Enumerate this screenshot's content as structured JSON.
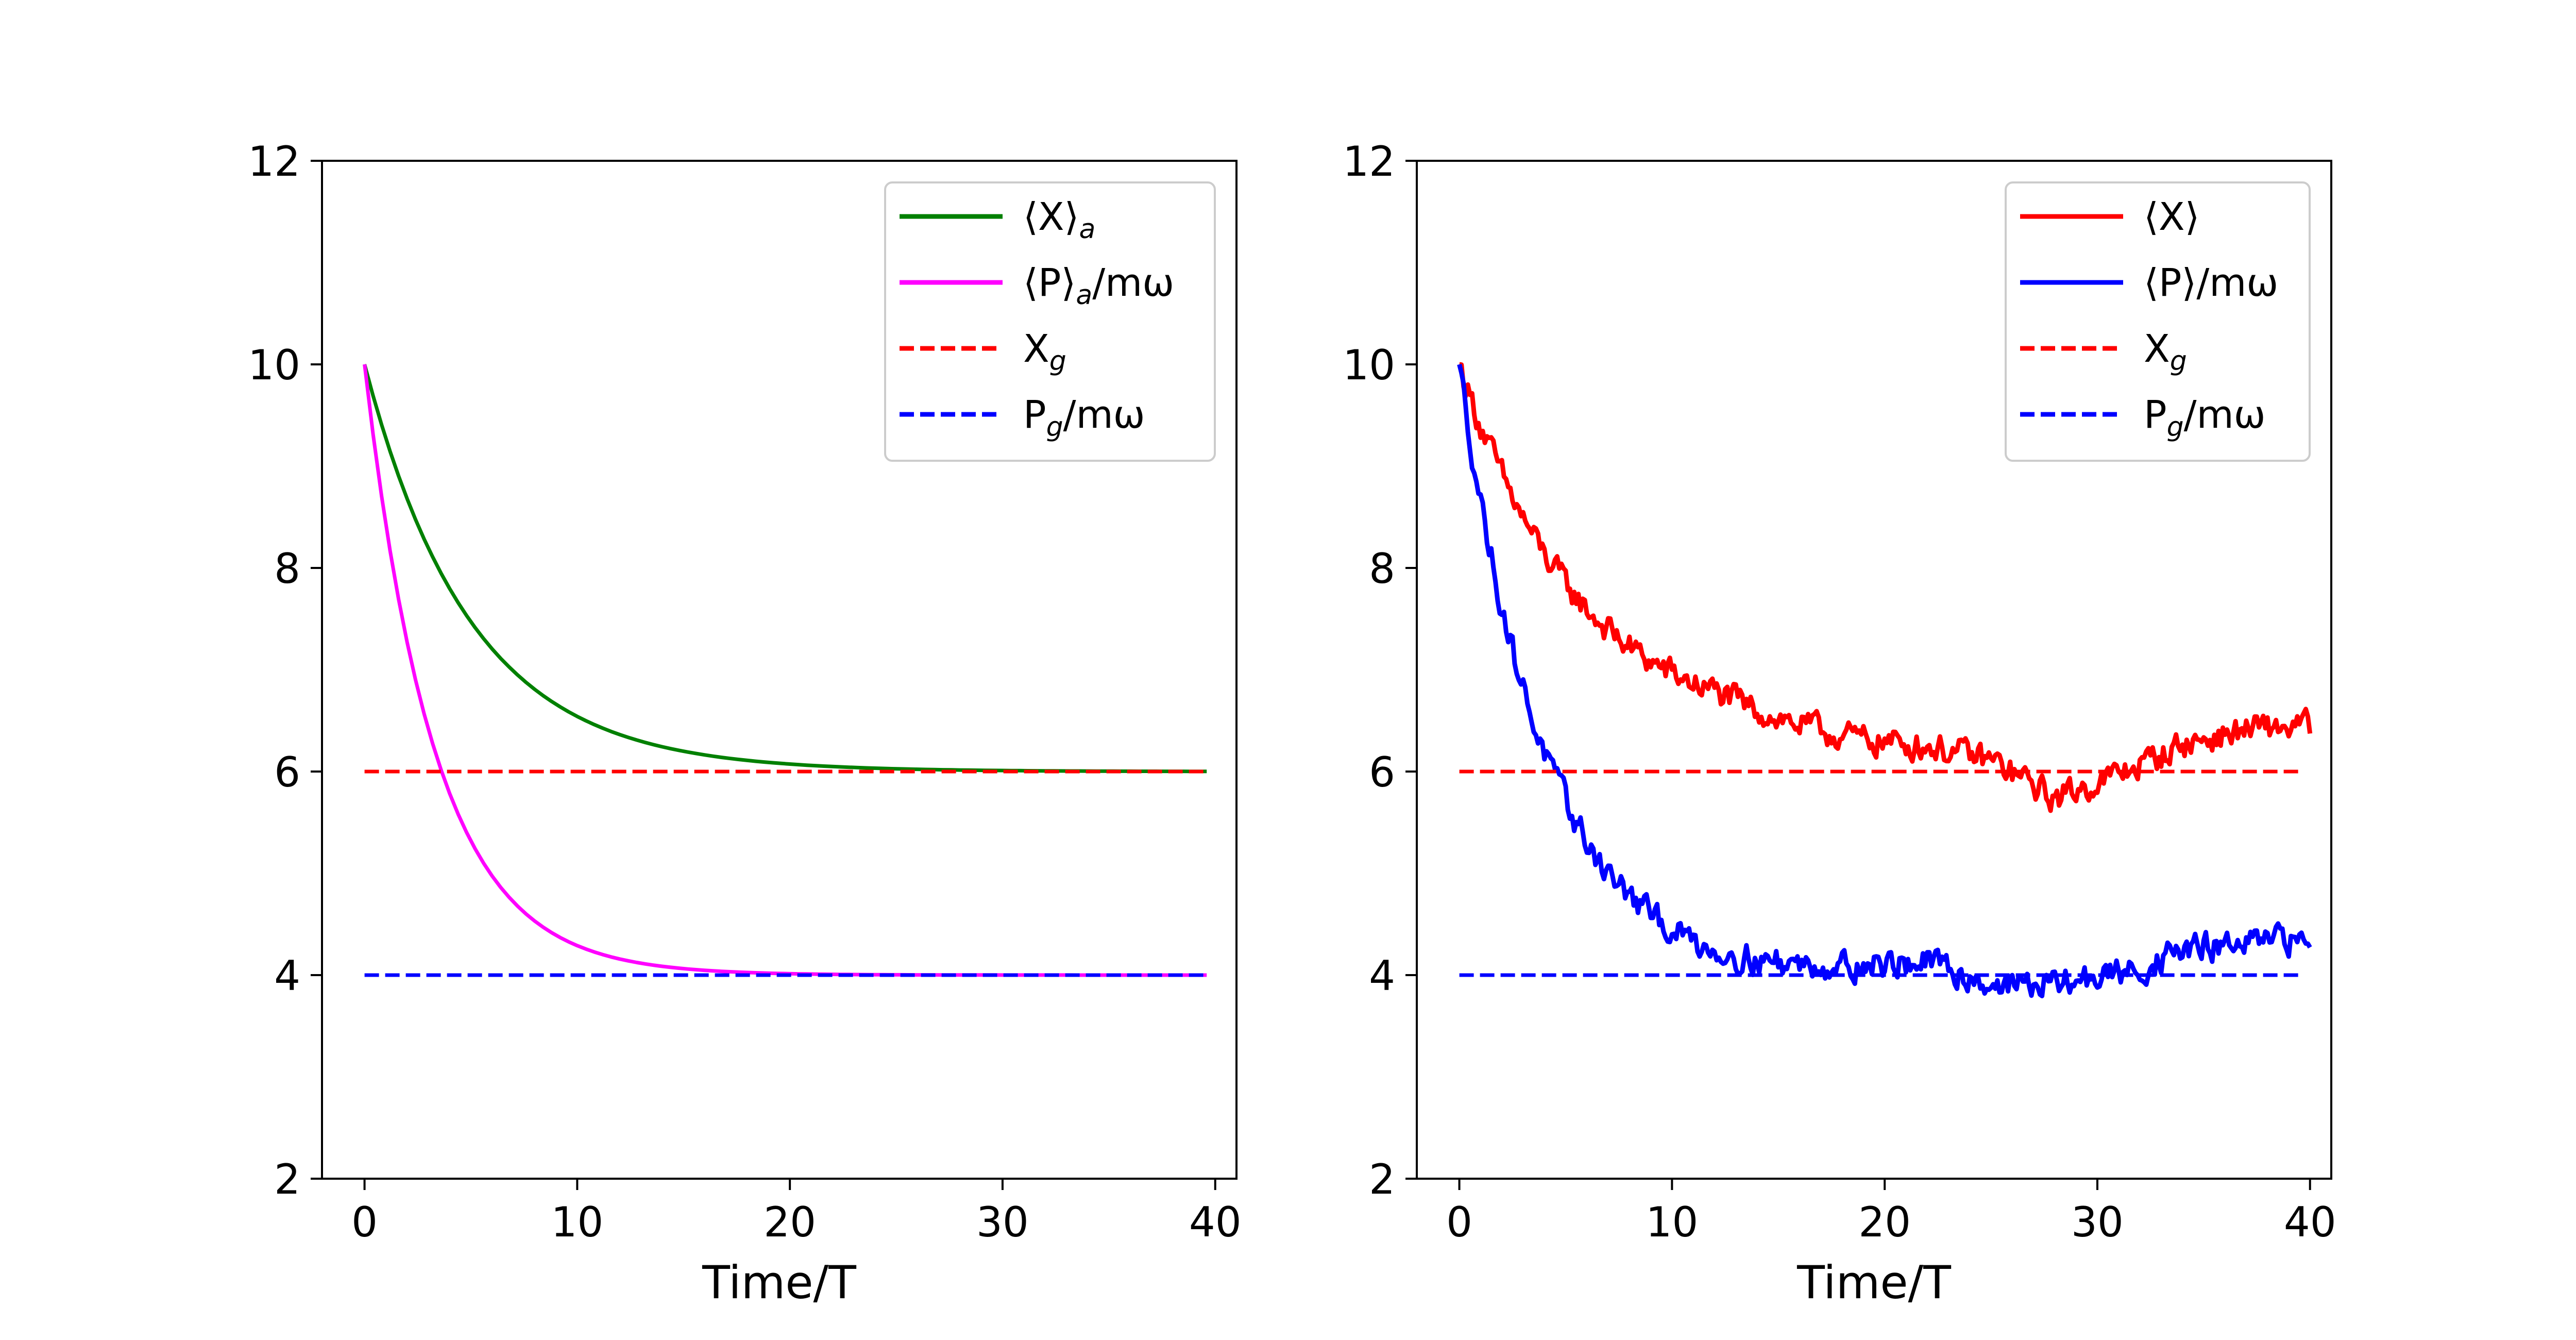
{
  "chart_data": [
    {
      "type": "line",
      "xlabel": "Time/T",
      "ylabel": "",
      "xlim": [
        -2,
        41
      ],
      "ylim": [
        2,
        12
      ],
      "xticks": [
        0,
        10,
        20,
        30,
        40
      ],
      "yticks": [
        2,
        4,
        6,
        8,
        10,
        12
      ],
      "legend_position": "top-right",
      "series": [
        {
          "name": "⟨X⟩",
          "sub": "a",
          "suffix": "",
          "color": "#008000",
          "style": "solid",
          "x_range": [
            0,
            39.6
          ],
          "start": 10,
          "end": 6,
          "tau": 5,
          "noise": 0,
          "step": 0.4
        },
        {
          "name": "⟨P⟩",
          "sub": "a",
          "suffix": "/mω",
          "color": "#ff00ff",
          "style": "solid",
          "x_range": [
            0,
            39.6
          ],
          "start": 10,
          "end": 4,
          "tau": 3.3,
          "noise": 0,
          "step": 0.4
        },
        {
          "name": "X",
          "sub": "g",
          "suffix": "",
          "color": "#ff0000",
          "style": "dashed",
          "x_range": [
            0,
            39.6
          ],
          "start": 6,
          "end": 6,
          "tau": 1,
          "noise": 0,
          "step": 39.6
        },
        {
          "name": "P",
          "sub": "g",
          "suffix": "/mω",
          "color": "#0000ff",
          "style": "dashed",
          "x_range": [
            0,
            39.6
          ],
          "start": 4,
          "end": 4,
          "tau": 1,
          "noise": 0,
          "step": 39.6
        }
      ]
    },
    {
      "type": "line",
      "xlabel": "Time/T",
      "ylabel": "",
      "xlim": [
        -2,
        41
      ],
      "ylim": [
        2,
        12
      ],
      "xticks": [
        0,
        10,
        20,
        30,
        40
      ],
      "yticks": [
        2,
        4,
        6,
        8,
        10,
        12
      ],
      "legend_position": "top-right",
      "series": [
        {
          "name": "⟨X⟩",
          "sub": "",
          "suffix": "",
          "color": "#ff0000",
          "style": "noisy",
          "x_range": [
            0,
            40
          ],
          "start": 10,
          "end": 6,
          "tau": 6,
          "noise": 0.22,
          "step": 0.1,
          "drift_x": [
            0,
            12,
            18,
            22,
            25,
            28,
            31,
            34,
            37,
            40
          ],
          "drift_y": [
            0,
            0.25,
            0.15,
            0.15,
            0.05,
            -0.3,
            -0.05,
            0.25,
            0.4,
            0.45
          ]
        },
        {
          "name": "⟨P⟩",
          "sub": "",
          "suffix": "/mω",
          "color": "#0000ff",
          "style": "noisy",
          "x_range": [
            0,
            40
          ],
          "start": 10,
          "end": 4,
          "tau": 4,
          "noise": 0.22,
          "step": 0.1,
          "drift_x": [
            0,
            12,
            16,
            22,
            25,
            28,
            32,
            34,
            37,
            40
          ],
          "drift_y": [
            0,
            -0.05,
            0.0,
            0.1,
            -0.1,
            -0.1,
            0.05,
            0.25,
            0.3,
            0.35
          ]
        },
        {
          "name": "X",
          "sub": "g",
          "suffix": "",
          "color": "#ff0000",
          "style": "dashed",
          "x_range": [
            0,
            39.6
          ],
          "start": 6,
          "end": 6,
          "tau": 1,
          "noise": 0,
          "step": 39.6
        },
        {
          "name": "P",
          "sub": "g",
          "suffix": "/mω",
          "color": "#0000ff",
          "style": "dashed",
          "x_range": [
            0,
            39.6
          ],
          "start": 4,
          "end": 4,
          "tau": 1,
          "noise": 0,
          "step": 39.6
        }
      ]
    }
  ]
}
